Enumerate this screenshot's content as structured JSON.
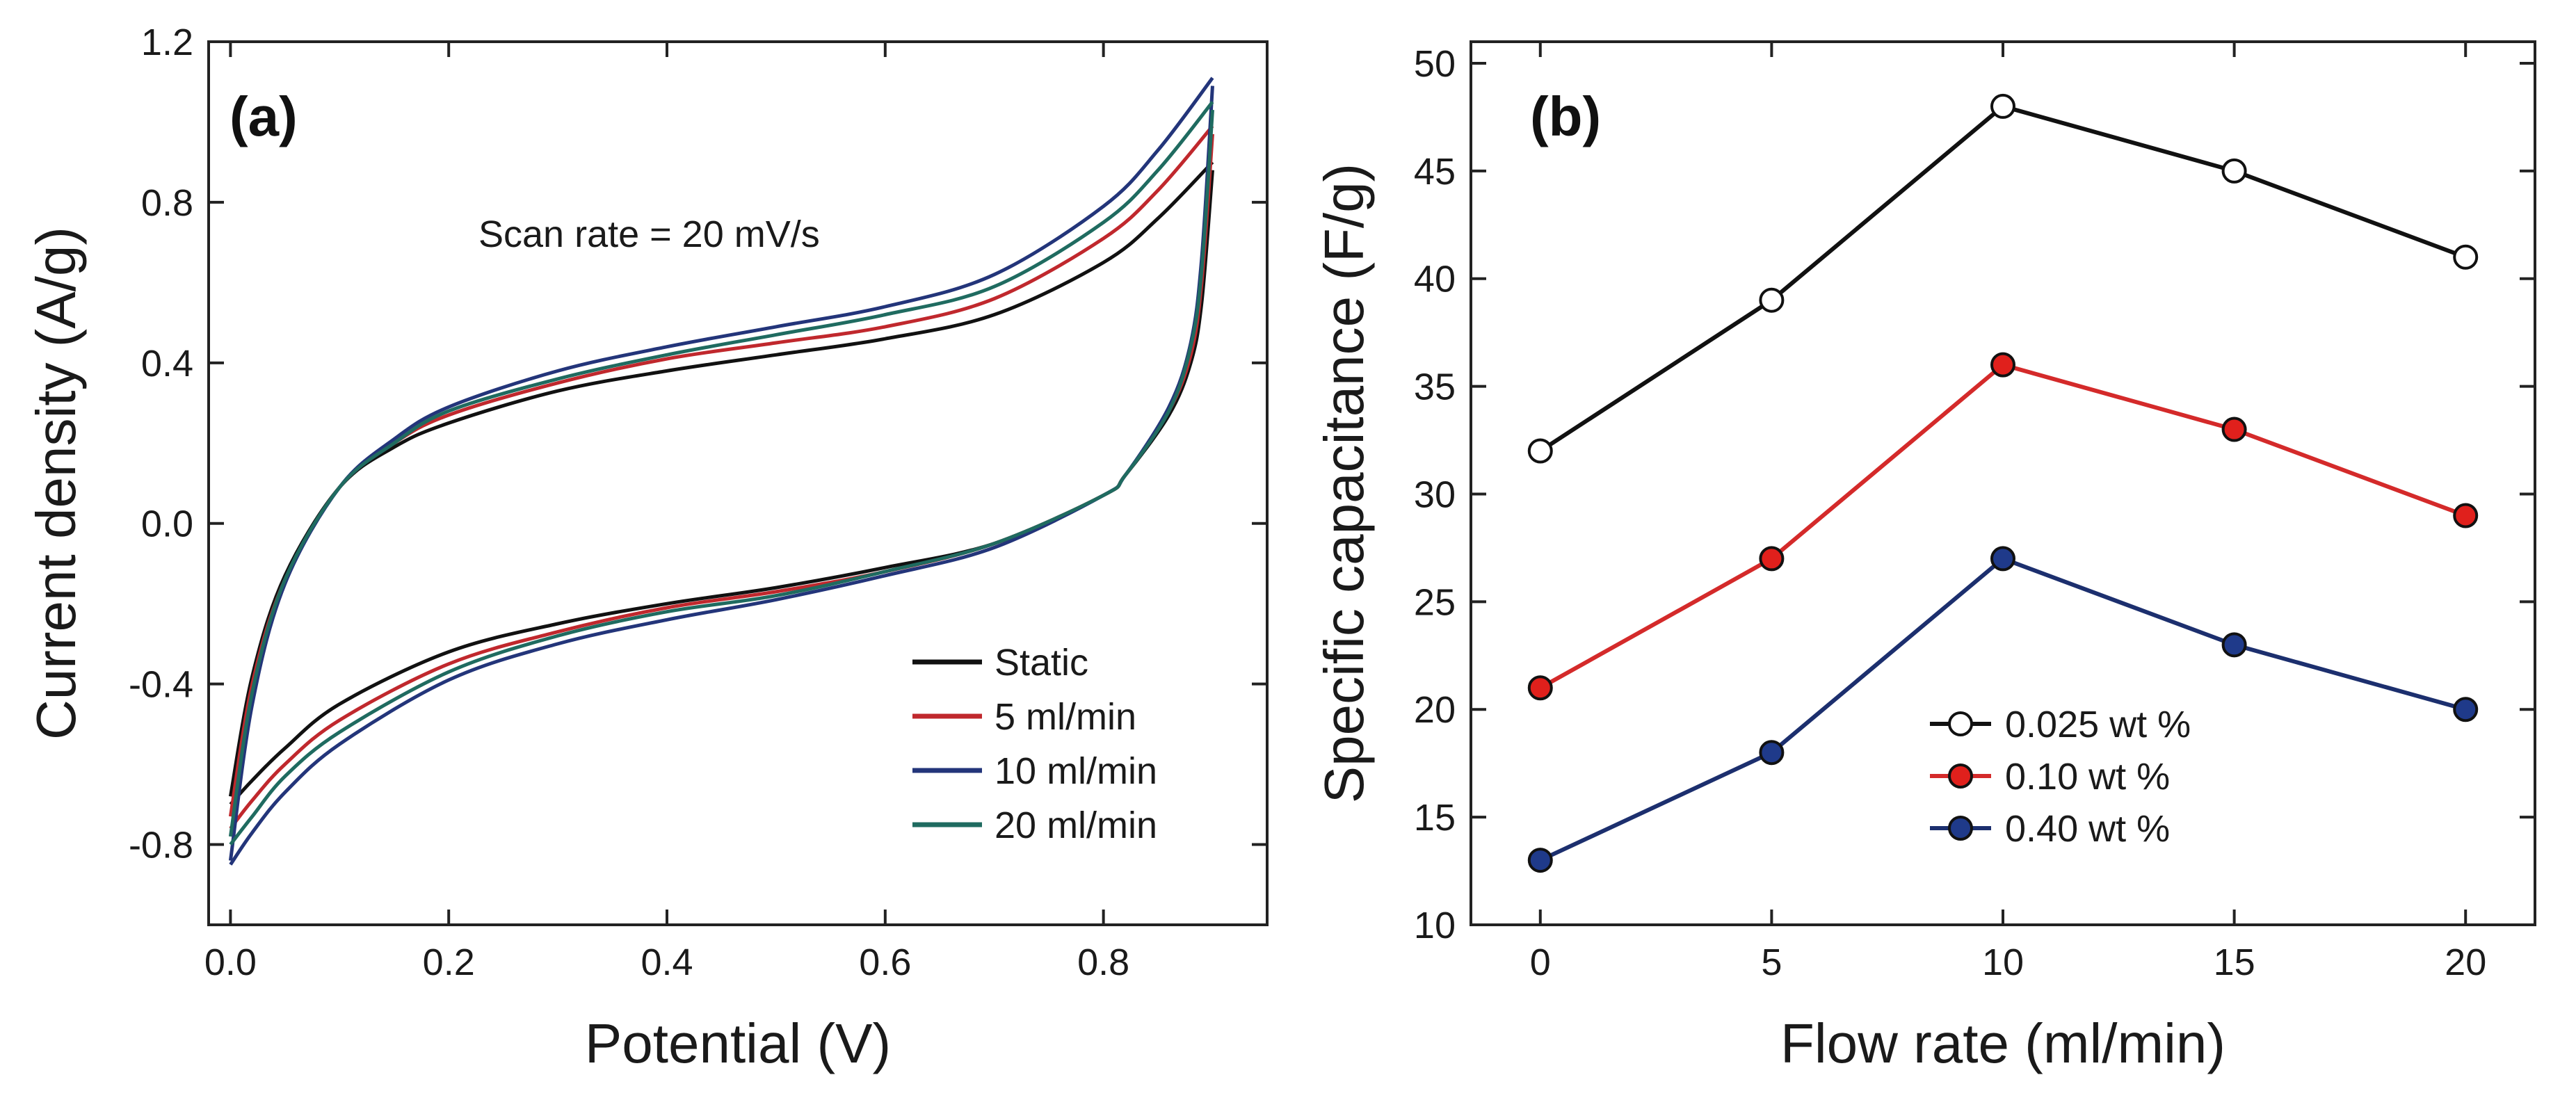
{
  "chart_data": [
    {
      "type": "line",
      "panel_label": "(a)",
      "title": "",
      "xlabel": "Potential (V)",
      "ylabel": "Current density (A/g)",
      "xlim": [
        -0.02,
        0.95
      ],
      "ylim": [
        -1.0,
        1.2
      ],
      "xticks": [
        0.0,
        0.2,
        0.4,
        0.6,
        0.8
      ],
      "xtick_labels": [
        "0.0",
        "0.2",
        "0.4",
        "0.6",
        "0.8"
      ],
      "yticks": [
        -0.8,
        -0.4,
        0.0,
        0.4,
        0.8,
        1.2
      ],
      "ytick_labels": [
        "-0.8",
        "-0.4",
        "0.0",
        "0.4",
        "0.8",
        "1.2"
      ],
      "annotation": "Scan rate = 20 mV/s",
      "legend_position": "lower-right",
      "series": [
        {
          "name": "Static",
          "color": "#111111",
          "upper": {
            "x": [
              0.0,
              0.02,
              0.05,
              0.1,
              0.15,
              0.2,
              0.3,
              0.4,
              0.5,
              0.6,
              0.7,
              0.8,
              0.85,
              0.9
            ],
            "y": [
              -0.68,
              -0.38,
              -0.13,
              0.09,
              0.19,
              0.25,
              0.33,
              0.38,
              0.42,
              0.46,
              0.52,
              0.65,
              0.76,
              0.9
            ]
          },
          "lower": {
            "x": [
              0.9,
              0.89,
              0.88,
              0.86,
              0.82,
              0.8,
              0.7,
              0.6,
              0.5,
              0.4,
              0.3,
              0.2,
              0.1,
              0.05,
              0.02,
              0.0
            ],
            "y": [
              0.88,
              0.55,
              0.4,
              0.27,
              0.12,
              0.07,
              -0.05,
              -0.11,
              -0.16,
              -0.2,
              -0.25,
              -0.32,
              -0.45,
              -0.56,
              -0.64,
              -0.7
            ]
          }
        },
        {
          "name": "5 ml/min",
          "color": "#c0282d",
          "upper": {
            "x": [
              0.0,
              0.02,
              0.05,
              0.1,
              0.15,
              0.2,
              0.3,
              0.4,
              0.5,
              0.6,
              0.7,
              0.8,
              0.85,
              0.9
            ],
            "y": [
              -0.73,
              -0.4,
              -0.14,
              0.09,
              0.2,
              0.27,
              0.35,
              0.41,
              0.45,
              0.49,
              0.56,
              0.71,
              0.83,
              0.99
            ]
          },
          "lower": {
            "x": [
              0.9,
              0.89,
              0.88,
              0.86,
              0.82,
              0.8,
              0.7,
              0.6,
              0.5,
              0.4,
              0.3,
              0.2,
              0.1,
              0.05,
              0.02,
              0.0
            ],
            "y": [
              0.97,
              0.6,
              0.42,
              0.28,
              0.12,
              0.07,
              -0.05,
              -0.12,
              -0.17,
              -0.21,
              -0.27,
              -0.35,
              -0.49,
              -0.6,
              -0.69,
              -0.76
            ]
          }
        },
        {
          "name": "10 ml/min",
          "color": "#23357a",
          "upper": {
            "x": [
              0.0,
              0.02,
              0.05,
              0.1,
              0.15,
              0.2,
              0.3,
              0.4,
              0.5,
              0.6,
              0.7,
              0.8,
              0.85,
              0.9
            ],
            "y": [
              -0.84,
              -0.45,
              -0.15,
              0.09,
              0.21,
              0.29,
              0.38,
              0.44,
              0.49,
              0.54,
              0.62,
              0.79,
              0.93,
              1.11
            ]
          },
          "lower": {
            "x": [
              0.9,
              0.89,
              0.88,
              0.86,
              0.82,
              0.8,
              0.7,
              0.6,
              0.5,
              0.4,
              0.3,
              0.2,
              0.1,
              0.05,
              0.02,
              0.0
            ],
            "y": [
              1.09,
              0.66,
              0.45,
              0.29,
              0.12,
              0.07,
              -0.06,
              -0.13,
              -0.19,
              -0.24,
              -0.3,
              -0.39,
              -0.55,
              -0.67,
              -0.77,
              -0.85
            ]
          }
        },
        {
          "name": "20 ml/min",
          "color": "#1f6b60",
          "upper": {
            "x": [
              0.0,
              0.02,
              0.05,
              0.1,
              0.15,
              0.2,
              0.3,
              0.4,
              0.5,
              0.6,
              0.7,
              0.8,
              0.85,
              0.9
            ],
            "y": [
              -0.78,
              -0.42,
              -0.14,
              0.09,
              0.2,
              0.28,
              0.36,
              0.42,
              0.47,
              0.52,
              0.59,
              0.75,
              0.88,
              1.05
            ]
          },
          "lower": {
            "x": [
              0.9,
              0.89,
              0.88,
              0.86,
              0.82,
              0.8,
              0.7,
              0.6,
              0.5,
              0.4,
              0.3,
              0.2,
              0.1,
              0.05,
              0.02,
              0.0
            ],
            "y": [
              1.03,
              0.63,
              0.44,
              0.28,
              0.12,
              0.07,
              -0.05,
              -0.12,
              -0.18,
              -0.22,
              -0.28,
              -0.37,
              -0.52,
              -0.63,
              -0.73,
              -0.8
            ]
          }
        }
      ]
    },
    {
      "type": "line",
      "panel_label": "(b)",
      "title": "",
      "xlabel": "Flow rate (ml/min)",
      "ylabel": "Specific capacitance (F/g)",
      "xlim": [
        -1.5,
        21.5
      ],
      "ylim": [
        10,
        51
      ],
      "xticks": [
        0,
        5,
        10,
        15,
        20
      ],
      "xtick_labels": [
        "0",
        "5",
        "10",
        "15",
        "20"
      ],
      "yticks": [
        10,
        15,
        20,
        25,
        30,
        35,
        40,
        45,
        50
      ],
      "ytick_labels": [
        "10",
        "15",
        "20",
        "25",
        "30",
        "35",
        "40",
        "45",
        "50"
      ],
      "legend_position": "lower-center",
      "categories": [
        0,
        5,
        10,
        15,
        20
      ],
      "series": [
        {
          "name": "0.025 wt %",
          "color": "#111111",
          "marker_fill": "#ffffff",
          "values": [
            32,
            39,
            48,
            45,
            41
          ]
        },
        {
          "name": "0.10 wt %",
          "color": "#d42a2a",
          "marker_fill": "#e0201c",
          "values": [
            21,
            27,
            36,
            33,
            29
          ]
        },
        {
          "name": "0.40 wt %",
          "color": "#1c2f6e",
          "marker_fill": "#1f3a8a",
          "values": [
            13,
            18,
            27,
            23,
            20
          ]
        }
      ]
    }
  ]
}
